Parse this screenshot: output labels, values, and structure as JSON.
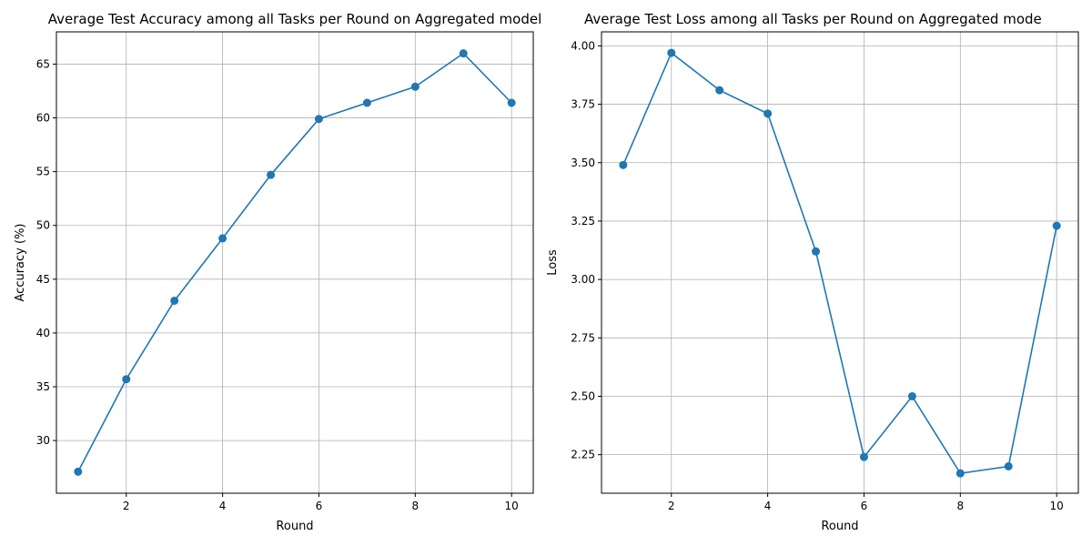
{
  "chart_data": [
    {
      "type": "line",
      "title": "Average Test Accuracy among all Tasks per Round on Aggregated model",
      "xlabel": "Round",
      "ylabel": "Accuracy (%)",
      "grid": true,
      "xlim": [
        0.55,
        10.45
      ],
      "ylim": [
        25.1,
        68.0
      ],
      "xticks": [
        2,
        4,
        6,
        8,
        10
      ],
      "yticks": [
        30,
        35,
        40,
        45,
        50,
        55,
        60,
        65
      ],
      "ytick_labels": [
        "30",
        "35",
        "40",
        "45",
        "50",
        "55",
        "60",
        "65"
      ],
      "series": [
        {
          "color": "#1f77b4",
          "marker": "circle",
          "x": [
            1,
            2,
            3,
            4,
            5,
            6,
            7,
            8,
            9,
            10
          ],
          "y": [
            27.1,
            35.7,
            43.0,
            48.8,
            54.7,
            59.9,
            61.4,
            62.9,
            66.0,
            61.4
          ]
        }
      ]
    },
    {
      "type": "line",
      "title": "Average Test Loss among all Tasks per Round on Aggregated mode",
      "xlabel": "Round",
      "ylabel": "Loss",
      "grid": true,
      "xlim": [
        0.55,
        10.45
      ],
      "ylim": [
        2.085,
        4.06
      ],
      "xticks": [
        2,
        4,
        6,
        8,
        10
      ],
      "yticks": [
        2.25,
        2.5,
        2.75,
        3.0,
        3.25,
        3.5,
        3.75,
        4.0
      ],
      "ytick_labels": [
        "2.25",
        "2.50",
        "2.75",
        "3.00",
        "3.25",
        "3.50",
        "3.75",
        "4.00"
      ],
      "series": [
        {
          "color": "#1f77b4",
          "marker": "circle",
          "x": [
            1,
            2,
            3,
            4,
            5,
            6,
            7,
            8,
            9,
            10
          ],
          "y": [
            3.49,
            3.97,
            3.81,
            3.71,
            3.12,
            2.24,
            2.5,
            2.17,
            2.2,
            3.23
          ]
        }
      ]
    }
  ]
}
